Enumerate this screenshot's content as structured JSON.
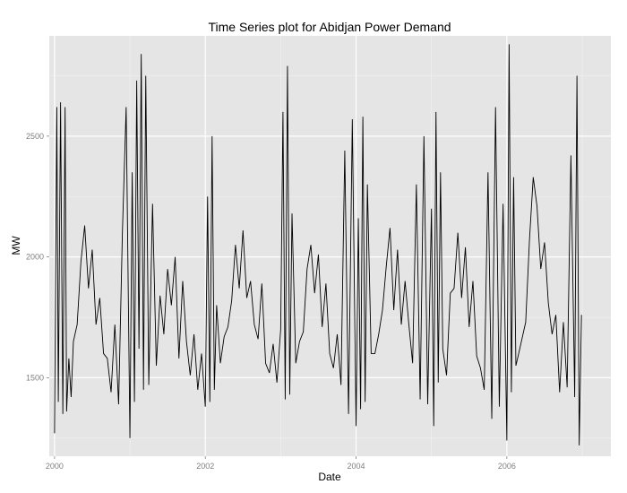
{
  "chart_data": {
    "type": "line",
    "title": "Time Series plot for Abidjan Power Demand",
    "xlabel": "Date",
    "ylabel": "MW",
    "x_ticks": [
      "2000",
      "2002",
      "2004",
      "2006"
    ],
    "y_ticks": [
      1500,
      2000,
      2500
    ],
    "xlim": [
      1999.93,
      2007.38
    ],
    "ylim": [
      1175,
      2915
    ],
    "grid": true,
    "legend": "none",
    "series": [
      {
        "x": [
          2000.0,
          2000.03,
          2000.05,
          2000.08,
          2000.11,
          2000.14,
          2000.16,
          2000.19,
          2000.22,
          2000.25,
          2000.3,
          2000.35,
          2000.4,
          2000.45,
          2000.5,
          2000.55,
          2000.6,
          2000.65,
          2000.7,
          2000.75,
          2000.8,
          2000.85,
          2000.9,
          2000.95,
          2001.0,
          2001.03,
          2001.06,
          2001.09,
          2001.12,
          2001.15,
          2001.18,
          2001.21,
          2001.25,
          2001.3,
          2001.35,
          2001.4,
          2001.45,
          2001.5,
          2001.55,
          2001.6,
          2001.65,
          2001.7,
          2001.75,
          2001.8,
          2001.85,
          2001.9,
          2001.95,
          2002.0,
          2002.03,
          2002.06,
          2002.09,
          2002.12,
          2002.15,
          2002.2,
          2002.25,
          2002.3,
          2002.35,
          2002.4,
          2002.45,
          2002.5,
          2002.55,
          2002.6,
          2002.65,
          2002.7,
          2002.75,
          2002.8,
          2002.85,
          2002.9,
          2002.95,
          2003.0,
          2003.03,
          2003.06,
          2003.09,
          2003.12,
          2003.15,
          2003.2,
          2003.25,
          2003.3,
          2003.35,
          2003.4,
          2003.45,
          2003.5,
          2003.55,
          2003.6,
          2003.65,
          2003.7,
          2003.75,
          2003.8,
          2003.85,
          2003.9,
          2003.95,
          2004.0,
          2004.03,
          2004.06,
          2004.09,
          2004.12,
          2004.15,
          2004.2,
          2004.25,
          2004.3,
          2004.35,
          2004.4,
          2004.45,
          2004.5,
          2004.55,
          2004.6,
          2004.65,
          2004.7,
          2004.75,
          2004.8,
          2004.85,
          2004.9,
          2004.95,
          2005.0,
          2005.03,
          2005.06,
          2005.09,
          2005.12,
          2005.15,
          2005.2,
          2005.25,
          2005.3,
          2005.35,
          2005.4,
          2005.45,
          2005.5,
          2005.55,
          2005.6,
          2005.65,
          2005.7,
          2005.75,
          2005.8,
          2005.85,
          2005.9,
          2005.95,
          2006.0,
          2006.03,
          2006.06,
          2006.09,
          2006.12,
          2006.15,
          2006.2,
          2006.25,
          2006.3,
          2006.35,
          2006.4,
          2006.45,
          2006.5,
          2006.55,
          2006.6,
          2006.65,
          2006.7,
          2006.75,
          2006.8,
          2006.85,
          2006.9,
          2006.93,
          2006.96,
          2006.99
        ],
        "y": [
          1270,
          2620,
          1400,
          2640,
          1350,
          2620,
          1360,
          1580,
          1420,
          1650,
          1720,
          1980,
          2130,
          1870,
          2030,
          1720,
          1830,
          1600,
          1580,
          1440,
          1720,
          1390,
          2100,
          2620,
          1250,
          2350,
          1400,
          2730,
          1620,
          2840,
          1450,
          2750,
          1470,
          2220,
          1550,
          1840,
          1680,
          1950,
          1800,
          2000,
          1580,
          1900,
          1650,
          1510,
          1680,
          1450,
          1600,
          1380,
          2250,
          1400,
          2500,
          1450,
          1800,
          1560,
          1670,
          1710,
          1820,
          2050,
          1870,
          2110,
          1830,
          1900,
          1720,
          1660,
          1890,
          1560,
          1520,
          1640,
          1480,
          1700,
          2600,
          1410,
          2790,
          1430,
          2180,
          1560,
          1650,
          1690,
          1950,
          2050,
          1850,
          2010,
          1710,
          1890,
          1600,
          1540,
          1680,
          1470,
          2440,
          1350,
          2570,
          1300,
          2160,
          1370,
          2580,
          1400,
          2300,
          1600,
          1600,
          1680,
          1780,
          1960,
          2120,
          1780,
          2030,
          1720,
          1900,
          1720,
          1560,
          2300,
          1410,
          2500,
          1390,
          2200,
          1300,
          2600,
          1480,
          2350,
          1620,
          1510,
          1850,
          1870,
          2100,
          1830,
          2040,
          1710,
          1900,
          1590,
          1540,
          1450,
          2350,
          1330,
          2620,
          1380,
          2220,
          1240,
          2880,
          1440,
          2330,
          1550,
          1590,
          1660,
          1730,
          2070,
          2330,
          2210,
          1950,
          2060,
          1810,
          1680,
          1760,
          1440,
          1730,
          1460,
          2420,
          1420,
          2750,
          1220,
          1760
        ]
      }
    ]
  }
}
